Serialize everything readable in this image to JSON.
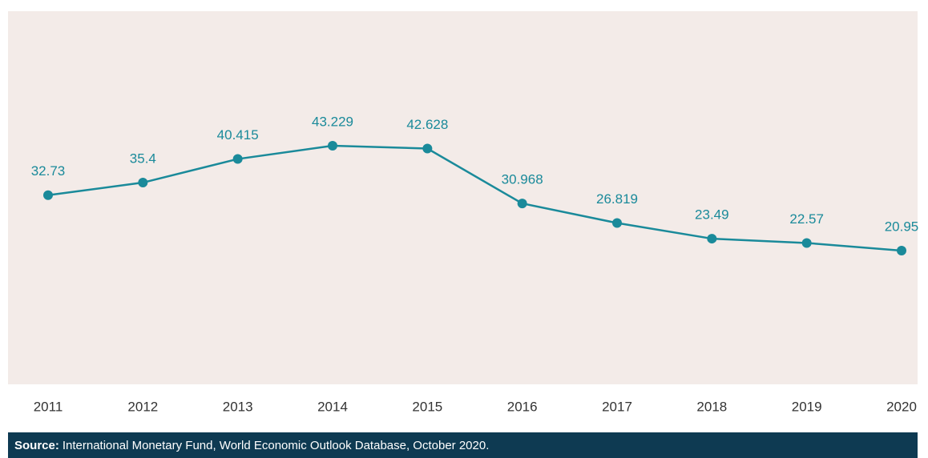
{
  "chart_data": {
    "type": "line",
    "categories": [
      "2011",
      "2012",
      "2013",
      "2014",
      "2015",
      "2016",
      "2017",
      "2018",
      "2019",
      "2020"
    ],
    "series": [
      {
        "color": "#1a8a9a",
        "values": [
          32.73,
          35.4,
          40.415,
          43.229,
          42.628,
          30.968,
          26.819,
          23.49,
          22.57,
          20.95
        ]
      }
    ],
    "source_label": "Source:",
    "source_text": "International Monetary Fund, World Economic Outlook Database, October 2020."
  }
}
